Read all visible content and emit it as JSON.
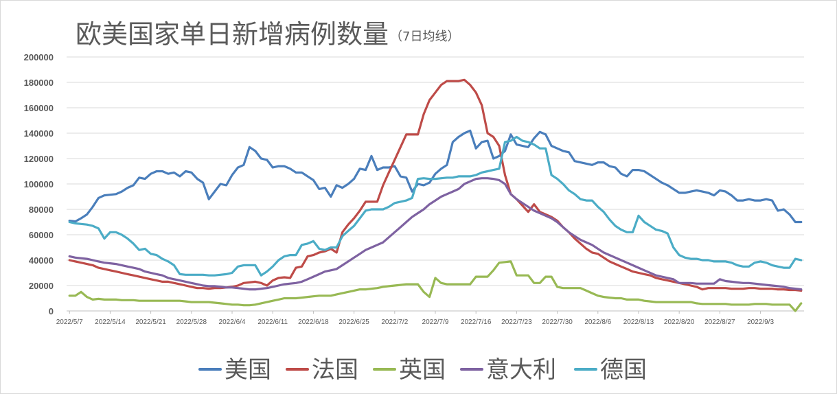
{
  "chart_data": {
    "type": "line",
    "title": "欧美国家单日新增病例数量",
    "subtitle": "（7日均线）",
    "xlabel": "",
    "ylabel": "",
    "ylim": [
      0,
      200000
    ],
    "yticks": [
      "0",
      "20000",
      "40000",
      "60000",
      "80000",
      "100000",
      "120000",
      "140000",
      "160000",
      "180000",
      "200000"
    ],
    "xticks": [
      "2022/5/7",
      "2022/5/14",
      "2022/5/21",
      "2022/5/28",
      "2022/6/4",
      "2022/6/11",
      "2022/6/18",
      "2022/6/25",
      "2022/7/2",
      "2022/7/9",
      "2022/7/16",
      "2022/7/23",
      "2022/7/30",
      "2022/8/6",
      "2022/8/13",
      "2022/8/20",
      "2022/8/27",
      "2022/9/3"
    ],
    "x_start": "2022/5/7",
    "days": 127,
    "grid": true,
    "legend_position": "bottom",
    "series": [
      {
        "name": "美国",
        "color": "#4a7ebb",
        "values": [
          71000,
          70500,
          73000,
          76000,
          82000,
          89000,
          91000,
          91500,
          92000,
          94000,
          97000,
          99000,
          105000,
          104000,
          108000,
          110000,
          110000,
          108000,
          109000,
          106000,
          110000,
          109000,
          104000,
          101000,
          88000,
          94000,
          100000,
          99000,
          107000,
          113000,
          115000,
          129000,
          126000,
          120000,
          119000,
          113000,
          114000,
          114000,
          112000,
          109000,
          109000,
          106000,
          103000,
          96000,
          97000,
          90000,
          99000,
          97000,
          100000,
          104000,
          112000,
          111000,
          122000,
          111000,
          113000,
          113000,
          114000,
          106000,
          105000,
          94000,
          100000,
          99000,
          101000,
          108000,
          112000,
          115000,
          133000,
          137000,
          140000,
          142000,
          128000,
          133000,
          134000,
          120000,
          122000,
          126000,
          139000,
          131000,
          130000,
          129000,
          136000,
          141000,
          139000,
          130000,
          128000,
          126000,
          125000,
          118000,
          117000,
          116000,
          115000,
          117000,
          117000,
          114000,
          113000,
          108000,
          106000,
          111000,
          111000,
          110000,
          107000,
          104000,
          101000,
          99000,
          96000,
          93000,
          93000,
          94000,
          95000,
          94000,
          93000,
          91000,
          95000,
          94000,
          91000,
          87000,
          87000,
          88000,
          87000,
          87000,
          88000,
          87000,
          79000,
          80000,
          76000,
          70000,
          70000
        ]
      },
      {
        "name": "法国",
        "color": "#be4b48",
        "values": [
          40000,
          39000,
          38000,
          37000,
          36000,
          34000,
          33000,
          32000,
          31000,
          30000,
          29000,
          28000,
          27000,
          26000,
          25000,
          24000,
          23000,
          23000,
          22000,
          21000,
          20000,
          19000,
          18000,
          18000,
          17500,
          18000,
          18000,
          18500,
          19000,
          20000,
          22000,
          22500,
          23000,
          22000,
          20000,
          24000,
          26000,
          26500,
          26000,
          34000,
          35000,
          43000,
          44000,
          46000,
          47000,
          49000,
          46000,
          62000,
          68000,
          73000,
          79000,
          86000,
          86000,
          86000,
          99000,
          109000,
          119000,
          129000,
          139000,
          139000,
          139000,
          155000,
          166000,
          172000,
          178000,
          181000,
          181000,
          181000,
          182000,
          178000,
          172000,
          162000,
          140000,
          137000,
          130000,
          107000,
          92000,
          88000,
          83000,
          78000,
          84000,
          78000,
          76000,
          74000,
          71000,
          66000,
          62000,
          57000,
          53000,
          49000,
          46000,
          45000,
          42000,
          39000,
          37000,
          35000,
          33000,
          31000,
          30000,
          29000,
          28000,
          26000,
          25000,
          24000,
          23000,
          22000,
          21000,
          20000,
          19000,
          17000,
          18000,
          18000,
          18000,
          18000,
          17500,
          17500,
          17500,
          18000,
          18000,
          17500,
          17500,
          17500,
          17000,
          17000,
          16500,
          16500,
          16000
        ]
      },
      {
        "name": "英国",
        "color": "#98b954",
        "values": [
          12000,
          12000,
          15000,
          11000,
          9000,
          9500,
          9000,
          9000,
          9000,
          8500,
          8500,
          8500,
          8000,
          8000,
          8000,
          8000,
          8000,
          8000,
          8000,
          8000,
          7500,
          7000,
          7000,
          7000,
          7000,
          6500,
          6000,
          5500,
          5000,
          5000,
          4500,
          4500,
          5000,
          6000,
          7000,
          8000,
          9000,
          10000,
          10000,
          10000,
          10500,
          11000,
          11500,
          12000,
          12000,
          12000,
          13000,
          14000,
          15000,
          16000,
          17000,
          17000,
          17500,
          18000,
          19000,
          19500,
          20000,
          20500,
          21000,
          21000,
          21000,
          15000,
          11000,
          26000,
          22000,
          21000,
          21000,
          21000,
          21000,
          21000,
          27000,
          27000,
          27000,
          32000,
          38000,
          38500,
          39000,
          28000,
          28000,
          28000,
          22000,
          22000,
          27000,
          27000,
          19000,
          18000,
          18000,
          18000,
          18000,
          16000,
          14000,
          12000,
          11000,
          10500,
          10000,
          10000,
          9000,
          9000,
          9000,
          8000,
          7500,
          7000,
          7000,
          7000,
          7000,
          7000,
          7000,
          7000,
          6000,
          5500,
          5500,
          5500,
          5500,
          5500,
          5000,
          5000,
          5000,
          5000,
          5500,
          5500,
          5500,
          5000,
          5000,
          5000,
          5000,
          0,
          6000
        ]
      },
      {
        "name": "意大利",
        "color": "#7e62a1",
        "values": [
          43000,
          42000,
          41500,
          41000,
          40000,
          39000,
          38000,
          37500,
          37000,
          36000,
          35000,
          34000,
          33000,
          31000,
          30000,
          29000,
          28000,
          26000,
          25000,
          24000,
          23000,
          22000,
          21000,
          20000,
          19500,
          19500,
          19000,
          18500,
          18500,
          18000,
          17500,
          17000,
          17000,
          17500,
          18000,
          19000,
          20000,
          21000,
          21500,
          22000,
          23000,
          25000,
          27000,
          29000,
          31000,
          32000,
          33000,
          36000,
          39000,
          42000,
          45000,
          48000,
          50000,
          52000,
          54000,
          58000,
          62000,
          66000,
          70000,
          74000,
          77000,
          80000,
          84000,
          87000,
          90000,
          92000,
          94000,
          96000,
          100000,
          102000,
          104000,
          104500,
          104500,
          104000,
          103000,
          100000,
          92000,
          88000,
          85000,
          82000,
          79000,
          77000,
          75000,
          73000,
          70000,
          66000,
          62000,
          59000,
          56000,
          54000,
          52000,
          49000,
          46000,
          44000,
          42000,
          40000,
          38000,
          36000,
          34000,
          32000,
          30000,
          28000,
          27000,
          26000,
          25000,
          22000,
          22000,
          22000,
          21500,
          21500,
          21500,
          21500,
          25000,
          23500,
          23000,
          22500,
          22000,
          22000,
          21500,
          21000,
          20500,
          20000,
          19500,
          19000,
          18000,
          17500,
          17000
        ]
      },
      {
        "name": "德国",
        "color": "#4bacc6",
        "values": [
          70000,
          69000,
          68500,
          68000,
          67000,
          65000,
          57000,
          62000,
          62000,
          60000,
          57000,
          53000,
          48000,
          49000,
          45000,
          44000,
          41000,
          39000,
          36000,
          29000,
          28500,
          28500,
          28500,
          28500,
          28000,
          28000,
          28500,
          29000,
          30000,
          35000,
          36000,
          36000,
          36000,
          28000,
          31000,
          35000,
          40000,
          43000,
          44000,
          44000,
          52000,
          53000,
          55000,
          49000,
          48000,
          50000,
          50000,
          59000,
          63000,
          67000,
          73000,
          79000,
          80000,
          80000,
          80000,
          82000,
          85000,
          86000,
          87000,
          89000,
          104000,
          104500,
          104000,
          104000,
          104500,
          105000,
          105000,
          106000,
          106000,
          106000,
          107000,
          109000,
          110000,
          111000,
          112000,
          133000,
          134000,
          137000,
          134000,
          133000,
          131000,
          128000,
          128000,
          107000,
          104000,
          100000,
          95000,
          92000,
          88000,
          87000,
          87000,
          82000,
          78000,
          72000,
          67000,
          64000,
          62000,
          62000,
          75000,
          70000,
          67000,
          64000,
          63000,
          61000,
          50000,
          44000,
          42000,
          41000,
          41000,
          40000,
          40000,
          39000,
          39000,
          39000,
          38000,
          36000,
          35000,
          35000,
          38000,
          39000,
          38000,
          36000,
          35000,
          34000,
          34000,
          41000,
          40000
        ]
      }
    ]
  }
}
